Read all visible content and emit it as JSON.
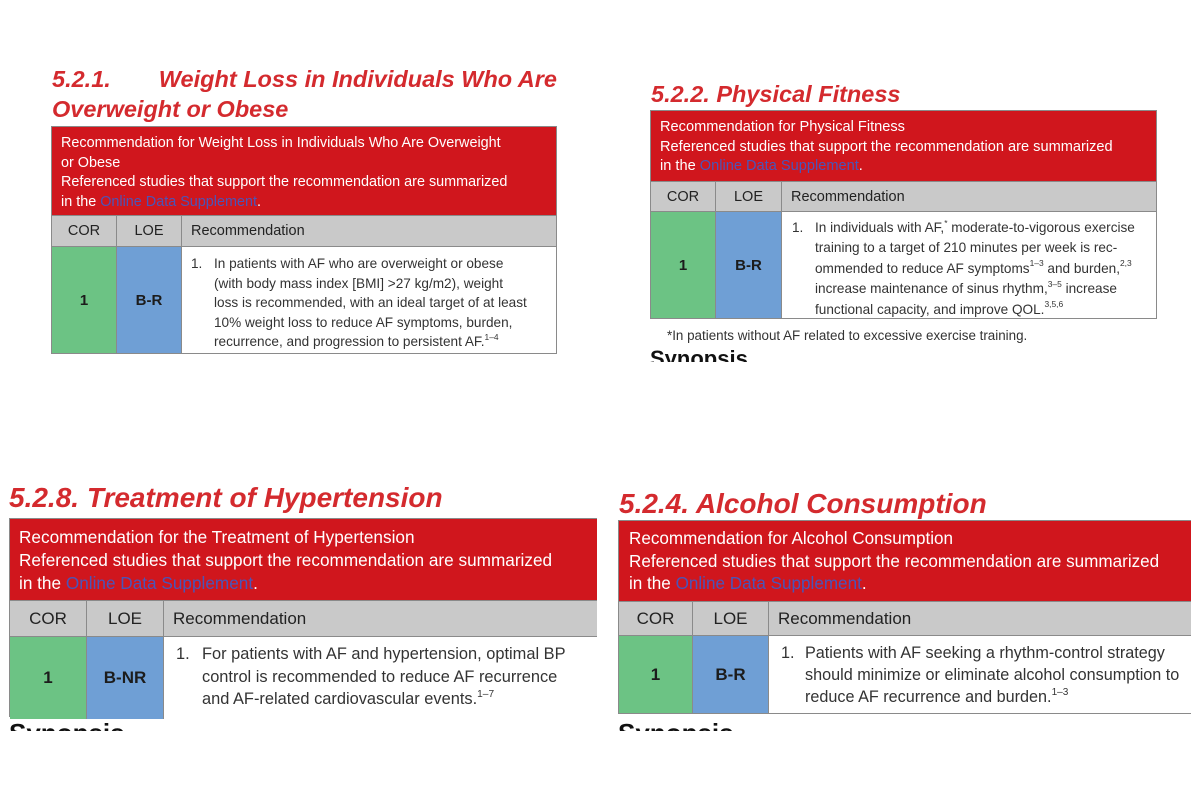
{
  "weight_loss": {
    "section_number": "5.2.1.",
    "section_title_line1": "Weight Loss in Individuals Who Are",
    "section_title_line2": "Overweight or Obese",
    "header_line1": "Recommendation for Weight Loss in Individuals Who Are Overweight",
    "header_line2": "or Obese",
    "header_line3": "Referenced studies that support the recommendation are summarized",
    "header_prefix": "in the ",
    "link_text": "Online Data Supplement",
    "header_suffix": ".",
    "col_cor": "COR",
    "col_loe": "LOE",
    "col_recommendation": "Recommendation",
    "cor": "1",
    "loe": "B-R",
    "rec_number": "1.",
    "rec_lines": [
      "In patients with AF who are overweight or obese",
      "(with body mass index [BMI] >27 kg/m2), weight",
      "loss is recommended, with an ideal target of at least",
      "10% weight loss to reduce AF symptoms, burden,"
    ],
    "rec_last_line": "recurrence, and progression to persistent AF.",
    "rec_sup": "1–4"
  },
  "physical_fitness": {
    "section_number": "5.2.2.",
    "section_title": "Physical Fitness",
    "header_line1": "Recommendation for Physical Fitness",
    "header_line2": "Referenced studies that support the recommendation are summarized",
    "header_prefix": "in the ",
    "link_text": "Online Data Supplement",
    "header_suffix": ".",
    "col_cor": "COR",
    "col_loe": "LOE",
    "col_recommendation": "Recommendation",
    "cor": "1",
    "loe": "B-R",
    "rec_number": "1.",
    "l1_a": "In individuals with AF,",
    "l1_sup": "*",
    "l1_b": " moderate-to-vigorous exercise",
    "l2": "training to a target of 210 minutes per week is rec-",
    "l3_a": "ommended to reduce AF symptoms",
    "l3_sup1": "1–3",
    "l3_b": " and burden,",
    "l3_sup2": "2,3",
    "l4_a": "increase maintenance of sinus rhythm,",
    "l4_sup": "3–5",
    "l4_b": " increase",
    "l5_a": "functional capacity, and improve QOL.",
    "l5_sup": "3,5,6",
    "footnote": "*In patients without AF related to excessive exercise training.",
    "cut_heading": "Synopsis"
  },
  "hypertension": {
    "section_number": "5.2.8.",
    "section_title": "Treatment of Hypertension",
    "header_line1": "Recommendation for the Treatment of Hypertension",
    "header_line2": "Referenced studies that support the recommendation are summarized",
    "header_prefix": "in the ",
    "link_text": "Online Data Supplement",
    "header_suffix": ".",
    "col_cor": "COR",
    "col_loe": "LOE",
    "col_recommendation": "Recommendation",
    "cor": "1",
    "loe": "B-NR",
    "rec_number": "1.",
    "rec_lines": [
      "For patients with AF and hypertension, optimal BP",
      "control is recommended to reduce AF recurrence"
    ],
    "rec_last_line": "and AF-related cardiovascular events.",
    "rec_sup": "1–7",
    "cut_heading": "Synopsis"
  },
  "alcohol": {
    "section_number": "5.2.4.",
    "section_title": "Alcohol Consumption",
    "header_line1": "Recommendation for Alcohol Consumption",
    "header_line2": "Referenced studies that support the recommendation are summarized",
    "header_prefix": "in the ",
    "link_text": "Online Data Supplement",
    "header_suffix": ".",
    "col_cor": "COR",
    "col_loe": "LOE",
    "col_recommendation": "Recommendation",
    "cor": "1",
    "loe": "B-R",
    "rec_number": "1.",
    "rec_lines": [
      "Patients with AF seeking a rhythm-control strategy",
      "should minimize or eliminate alcohol consumption to"
    ],
    "rec_last_line": "reduce AF recurrence and burden.",
    "rec_sup": "1–3",
    "cut_heading": "Synopsis"
  },
  "colors": {
    "title_red": "#d42a2e",
    "header_red": "#d0161d",
    "cor_green": "#6cc384",
    "loe_blue": "#6f9fd5",
    "column_gray": "#c9c9c9",
    "link_blue": "#4a55b8"
  }
}
